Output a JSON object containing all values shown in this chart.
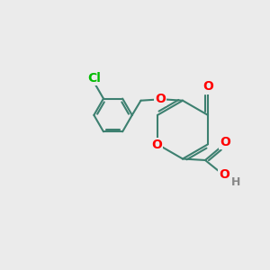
{
  "bg_color": "#ebebeb",
  "bond_color": "#3d8070",
  "bond_width": 1.5,
  "atom_colors": {
    "O": "#ff0000",
    "Cl": "#00bb00",
    "H": "#888888",
    "C": "#000000"
  },
  "font_size_atom": 10,
  "font_size_h": 9
}
